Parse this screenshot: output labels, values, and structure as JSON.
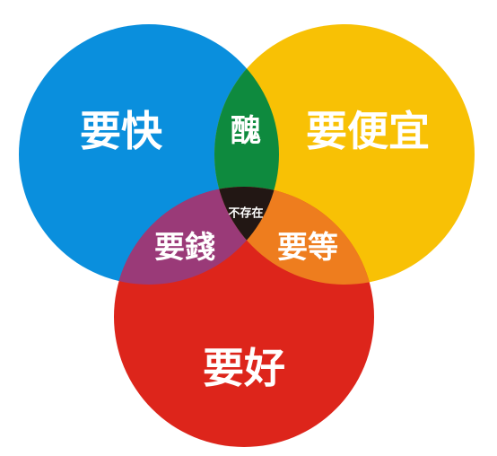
{
  "diagram": {
    "circles": {
      "fast": {
        "label": "要快",
        "color": "#0A8FDD"
      },
      "cheap": {
        "label": "要便宜",
        "color": "#F8C105"
      },
      "good": {
        "label": "要好",
        "color": "#DD251B"
      }
    },
    "overlaps": {
      "fast_cheap": {
        "label": "醜",
        "color": "#0E8A3E"
      },
      "fast_good": {
        "label": "要錢",
        "color": "#9A3A78"
      },
      "cheap_good": {
        "label": "要等",
        "color": "#EE7D1E"
      },
      "fast_cheap_good": {
        "label": "不存在",
        "color": "#221714"
      }
    }
  }
}
